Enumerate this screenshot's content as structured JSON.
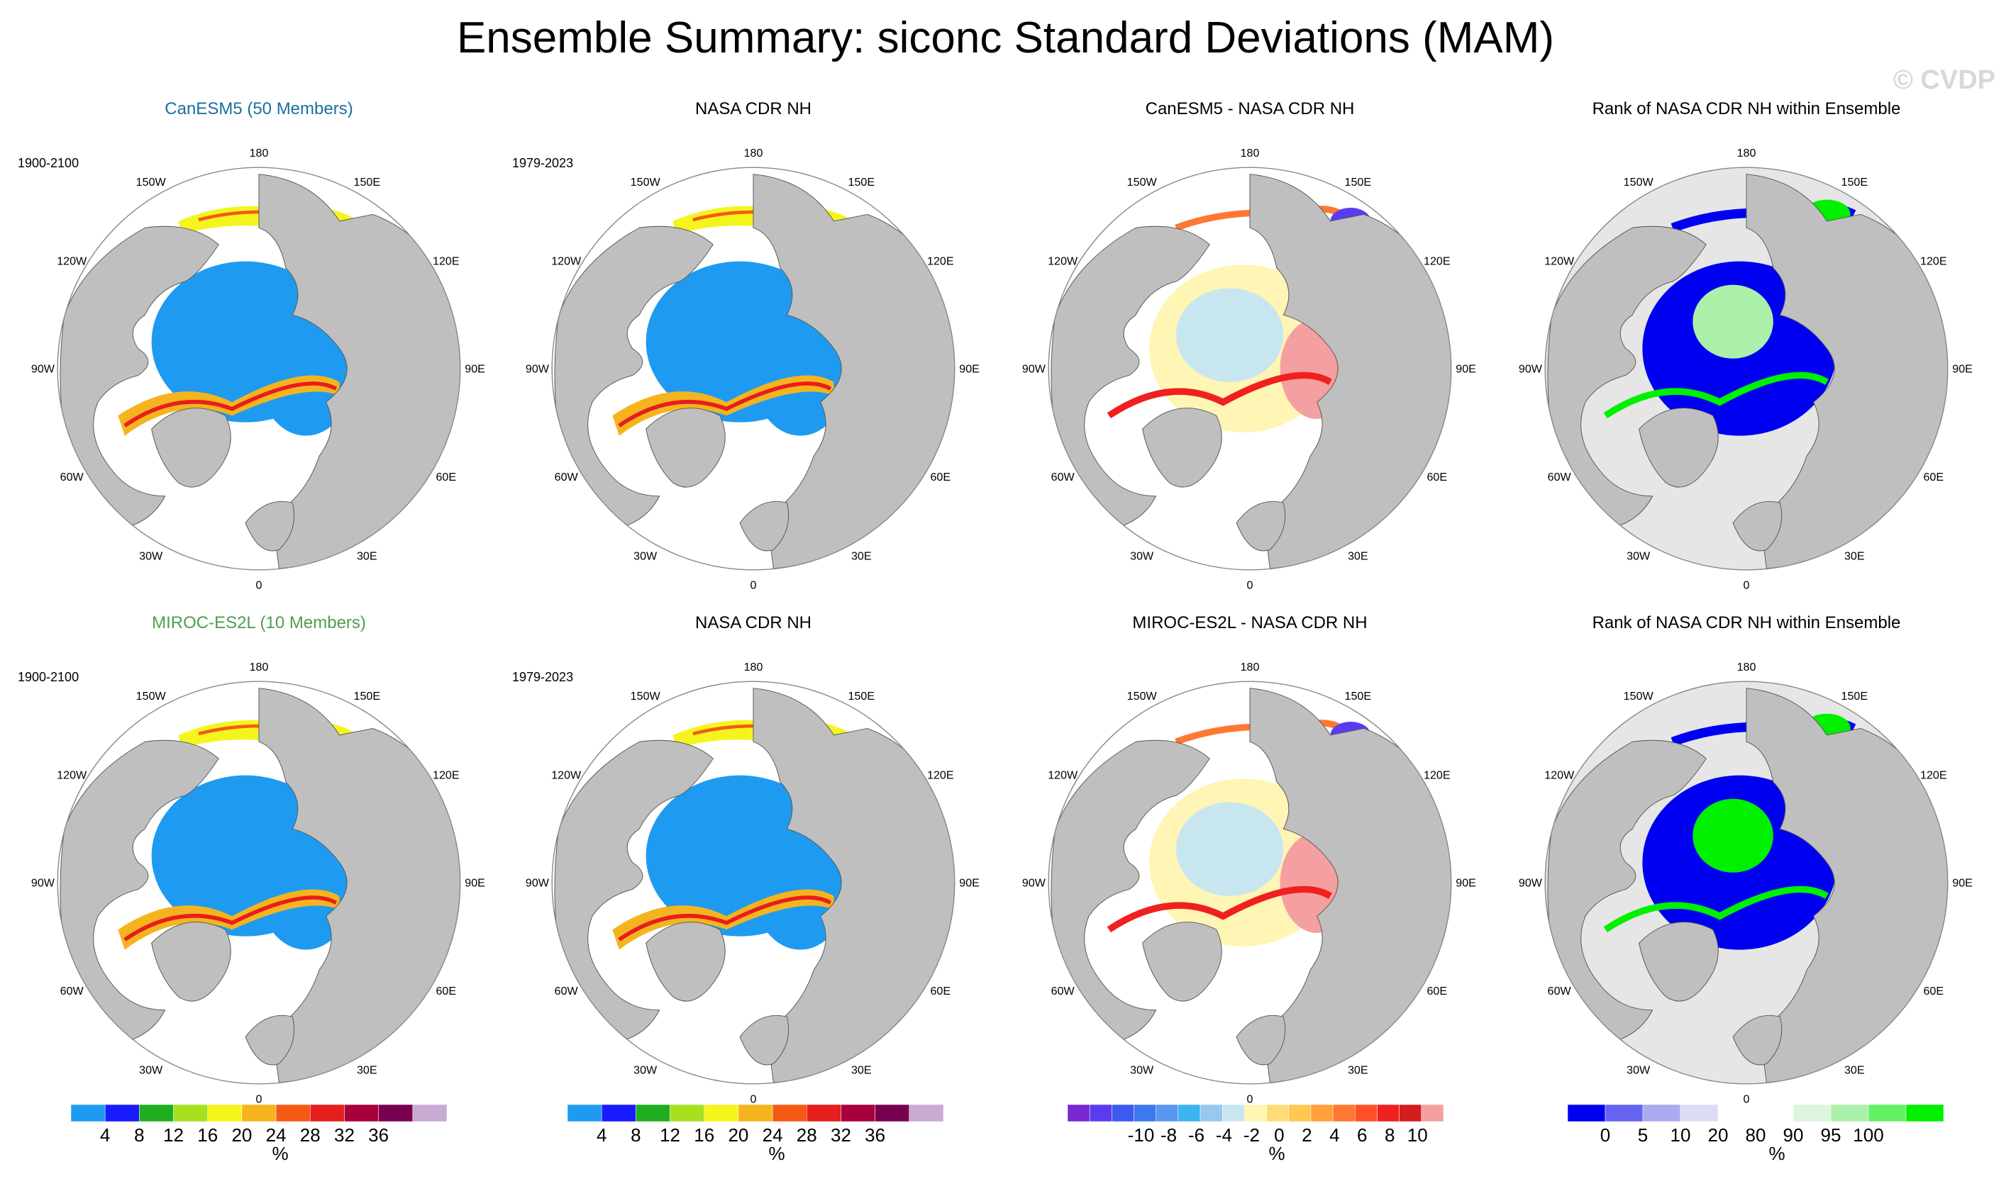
{
  "title": "Ensemble Summary: siconc Standard Deviations (MAM)",
  "copyright": "© CVDP",
  "lon_labels": [
    "180",
    "150E",
    "120E",
    "90E",
    "60E",
    "30E",
    "0",
    "30W",
    "60W",
    "90W",
    "120W",
    "150W"
  ],
  "rows": [
    {
      "panels": [
        {
          "title": "CanESM5 (50 Members)",
          "period": "1900-2100",
          "kind": "std",
          "title_color": "#1a6fa0"
        },
        {
          "title": "NASA CDR NH",
          "period": "1979-2023",
          "kind": "std"
        },
        {
          "title": "CanESM5 - NASA CDR NH",
          "period": "",
          "kind": "diff"
        },
        {
          "title": "Rank of NASA CDR NH within Ensemble",
          "period": "",
          "kind": "rank"
        }
      ]
    },
    {
      "panels": [
        {
          "title": "MIROC-ES2L (10 Members)",
          "period": "1900-2100",
          "kind": "std",
          "title_color": "#4e9e4e"
        },
        {
          "title": "NASA CDR NH",
          "period": "1979-2023",
          "kind": "std"
        },
        {
          "title": "MIROC-ES2L - NASA CDR NH",
          "period": "",
          "kind": "diff"
        },
        {
          "title": "Rank of NASA CDR NH within Ensemble",
          "period": "",
          "kind": "rank"
        }
      ]
    }
  ],
  "colorbars": [
    {
      "name": "std",
      "unit": "%",
      "colors": [
        "#1e9bf0",
        "#1a1aff",
        "#1fae1f",
        "#a8e01e",
        "#f5f51e",
        "#f5b41e",
        "#f55a14",
        "#e61e1e",
        "#a8003c",
        "#780050",
        "#c8aad2"
      ],
      "labels": [
        "4",
        "8",
        "12",
        "16",
        "20",
        "24",
        "28",
        "32",
        "36"
      ]
    },
    {
      "name": "std",
      "unit": "%",
      "colors": [
        "#1e9bf0",
        "#1a1aff",
        "#1fae1f",
        "#a8e01e",
        "#f5f51e",
        "#f5b41e",
        "#f55a14",
        "#e61e1e",
        "#a8003c",
        "#780050",
        "#c8aad2"
      ],
      "labels": [
        "4",
        "8",
        "12",
        "16",
        "20",
        "24",
        "28",
        "32",
        "36"
      ]
    },
    {
      "name": "diff",
      "unit": "%",
      "colors": [
        "#7828d2",
        "#5a3cf0",
        "#3c5af0",
        "#3c78f0",
        "#5a96f0",
        "#3cb4f0",
        "#96c8f0",
        "#c8e6f0",
        "#fff5b4",
        "#ffdc78",
        "#ffc850",
        "#ffa03c",
        "#ff7832",
        "#ff5028",
        "#f02020",
        "#d21e1e",
        "#f5a0a0"
      ],
      "labels": [
        "-10",
        "-8",
        "-6",
        "-4",
        "-2",
        "0",
        "2",
        "4",
        "6",
        "8",
        "10"
      ]
    },
    {
      "name": "rank",
      "unit": "%",
      "colors": [
        "#0000f0",
        "#6464f0",
        "#aaaaf0",
        "#dcdcf5",
        "#ffffff",
        "#ffffff",
        "#dcf5dc",
        "#aaf0aa",
        "#64f064",
        "#00f000"
      ],
      "labels": [
        "0",
        "5",
        "10",
        "20",
        "80",
        "90",
        "95",
        "100"
      ]
    }
  ]
}
